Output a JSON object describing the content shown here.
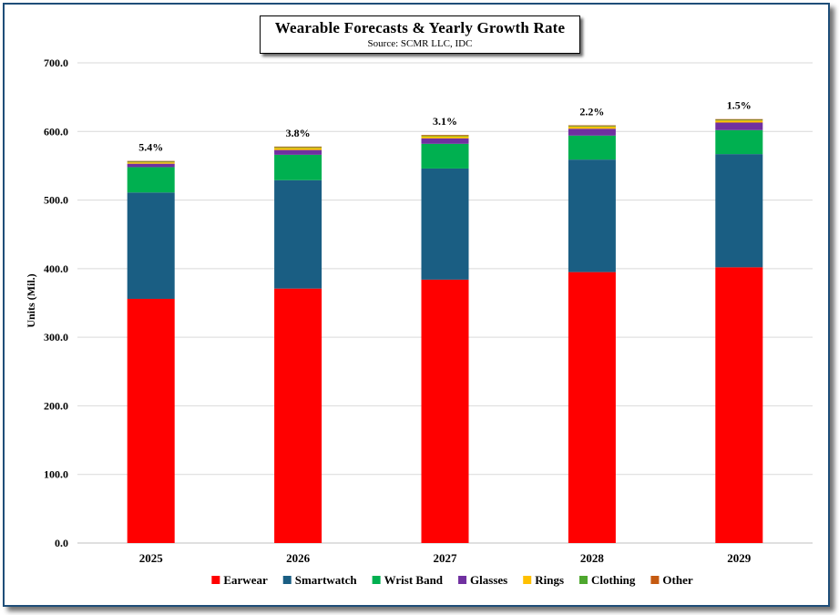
{
  "chart_data": {
    "type": "bar",
    "stacked": true,
    "title": "Wearable  Forecasts & Yearly Growth Rate",
    "subtitle": "Source: SCMR LLC, IDC",
    "xlabel": "",
    "ylabel": "Units (Mil.)",
    "ylim": [
      0,
      700
    ],
    "yticks": [
      "0.0",
      "100.0",
      "200.0",
      "300.0",
      "400.0",
      "500.0",
      "600.0",
      "700.0"
    ],
    "grid": true,
    "legend_position": "bottom",
    "categories": [
      "2025",
      "2026",
      "2027",
      "2028",
      "2029"
    ],
    "series": [
      {
        "name": "Earwear",
        "color": "#ff0000",
        "values": [
          356,
          371,
          384,
          395,
          402
        ]
      },
      {
        "name": "Smartwatch",
        "color": "#1a5e83",
        "values": [
          155,
          158,
          162,
          164,
          165
        ]
      },
      {
        "name": "Wrist Band",
        "color": "#00b050",
        "values": [
          37,
          37,
          36,
          35,
          35
        ]
      },
      {
        "name": "Glasses",
        "color": "#7030a0",
        "values": [
          5,
          7,
          8,
          10,
          11
        ]
      },
      {
        "name": "Rings",
        "color": "#ffc000",
        "values": [
          2,
          3,
          3,
          3,
          3
        ]
      },
      {
        "name": "Clothing",
        "color": "#4ea72e",
        "values": [
          1,
          1,
          1,
          1,
          1
        ]
      },
      {
        "name": "Other",
        "color": "#c55a11",
        "values": [
          1,
          1,
          1,
          1,
          1
        ]
      }
    ],
    "annotations": [
      "5.4%",
      "3.8%",
      "3.1%",
      "2.2%",
      "1.5%"
    ]
  }
}
